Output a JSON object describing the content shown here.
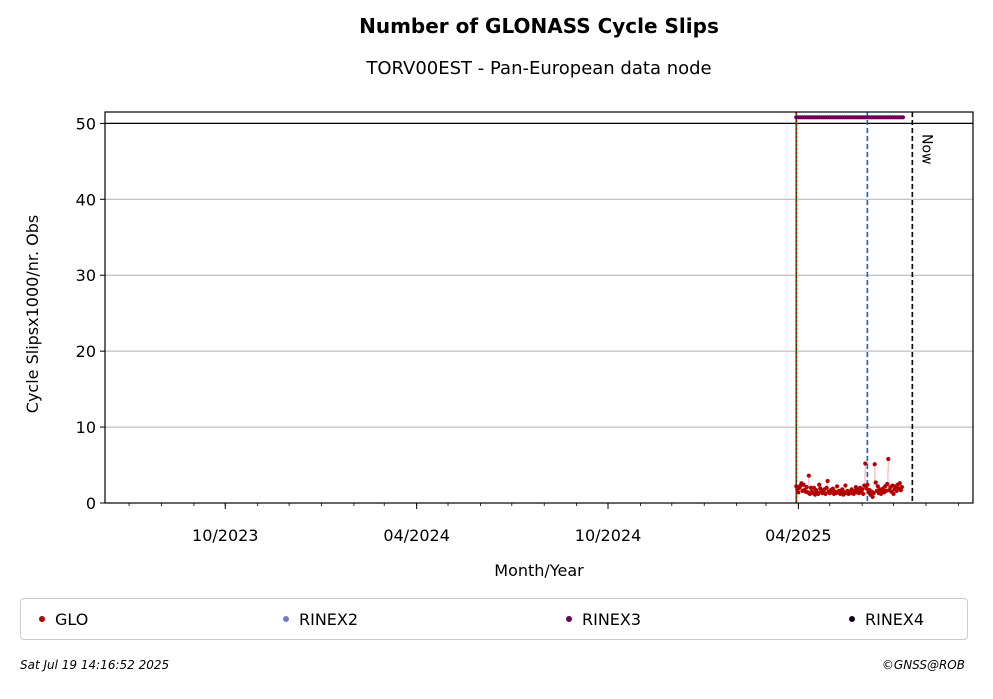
{
  "chart_data": {
    "type": "scatter",
    "title": "Number of GLONASS Cycle Slips",
    "subtitle": "TORV00EST - Pan-European data node",
    "xlabel": "Month/Year",
    "ylabel": "Cycle Slipsx1000/nr. Obs",
    "x_range": [
      "2023-06-08",
      "2025-09-15"
    ],
    "ylim": [
      0,
      51.5
    ],
    "y_ticks": [
      0,
      10,
      20,
      30,
      40,
      50
    ],
    "x_ticks": [
      {
        "date": "2023-10-01",
        "label": "10/2023"
      },
      {
        "date": "2024-04-01",
        "label": "04/2024"
      },
      {
        "date": "2024-10-01",
        "label": "10/2024"
      },
      {
        "date": "2025-04-01",
        "label": "04/2025"
      }
    ],
    "grid": "horizontal",
    "vertical_lines": [
      {
        "date": "2025-03-30",
        "color": "#008000",
        "style": "solid"
      },
      {
        "date": "2025-03-30",
        "color": "#cc0000",
        "style": "dotted"
      },
      {
        "date": "2025-06-06",
        "color": "#1f5fbf",
        "style": "dashed"
      },
      {
        "date": "2025-07-19",
        "color": "#000000",
        "style": "dashed",
        "label": "Now"
      }
    ],
    "reference_line": {
      "y": 50,
      "color": "#000000"
    },
    "series": [
      {
        "name": "GLO",
        "color": "#b40000",
        "points": [
          [
            "2025-03-30",
            2.2
          ],
          [
            "2025-03-31",
            1.8
          ],
          [
            "2025-04-01",
            1.4
          ],
          [
            "2025-04-02",
            2.0
          ],
          [
            "2025-04-03",
            2.3
          ],
          [
            "2025-04-04",
            2.6
          ],
          [
            "2025-04-05",
            1.6
          ],
          [
            "2025-04-06",
            2.4
          ],
          [
            "2025-04-07",
            1.7
          ],
          [
            "2025-04-08",
            1.5
          ],
          [
            "2025-04-09",
            2.1
          ],
          [
            "2025-04-10",
            1.4
          ],
          [
            "2025-04-11",
            3.6
          ],
          [
            "2025-04-12",
            1.2
          ],
          [
            "2025-04-13",
            2.0
          ],
          [
            "2025-04-14",
            1.5
          ],
          [
            "2025-04-15",
            1.3
          ],
          [
            "2025-04-16",
            2.0
          ],
          [
            "2025-04-17",
            1.1
          ],
          [
            "2025-04-18",
            1.7
          ],
          [
            "2025-04-19",
            1.4
          ],
          [
            "2025-04-20",
            1.2
          ],
          [
            "2025-04-21",
            2.4
          ],
          [
            "2025-04-22",
            1.9
          ],
          [
            "2025-04-23",
            1.5
          ],
          [
            "2025-04-24",
            1.3
          ],
          [
            "2025-04-25",
            1.6
          ],
          [
            "2025-04-26",
            1.8
          ],
          [
            "2025-04-27",
            1.2
          ],
          [
            "2025-04-28",
            2.0
          ],
          [
            "2025-04-29",
            2.9
          ],
          [
            "2025-04-30",
            1.5
          ],
          [
            "2025-05-01",
            1.3
          ],
          [
            "2025-05-02",
            1.7
          ],
          [
            "2025-05-03",
            1.4
          ],
          [
            "2025-05-04",
            1.9
          ],
          [
            "2025-05-05",
            1.2
          ],
          [
            "2025-05-06",
            1.5
          ],
          [
            "2025-05-07",
            1.3
          ],
          [
            "2025-05-08",
            2.2
          ],
          [
            "2025-05-09",
            1.4
          ],
          [
            "2025-05-10",
            1.6
          ],
          [
            "2025-05-11",
            1.2
          ],
          [
            "2025-05-12",
            1.5
          ],
          [
            "2025-05-13",
            1.8
          ],
          [
            "2025-05-14",
            1.1
          ],
          [
            "2025-05-15",
            1.4
          ],
          [
            "2025-05-16",
            2.3
          ],
          [
            "2025-05-17",
            1.3
          ],
          [
            "2025-05-18",
            1.6
          ],
          [
            "2025-05-19",
            1.2
          ],
          [
            "2025-05-20",
            1.5
          ],
          [
            "2025-05-21",
            1.3
          ],
          [
            "2025-05-22",
            1.8
          ],
          [
            "2025-05-23",
            1.4
          ],
          [
            "2025-05-24",
            1.2
          ],
          [
            "2025-05-25",
            1.6
          ],
          [
            "2025-05-26",
            2.1
          ],
          [
            "2025-05-27",
            1.4
          ],
          [
            "2025-05-28",
            1.7
          ],
          [
            "2025-05-29",
            1.3
          ],
          [
            "2025-05-30",
            2.0
          ],
          [
            "2025-05-31",
            1.5
          ],
          [
            "2025-06-01",
            1.8
          ],
          [
            "2025-06-02",
            1.2
          ],
          [
            "2025-06-03",
            2.3
          ],
          [
            "2025-06-04",
            5.2
          ],
          [
            "2025-06-05",
            1.9
          ],
          [
            "2025-06-06",
            2.4
          ],
          [
            "2025-06-07",
            1.4
          ],
          [
            "2025-06-08",
            1.7
          ],
          [
            "2025-06-09",
            1.1
          ],
          [
            "2025-06-10",
            1.5
          ],
          [
            "2025-06-11",
            0.8
          ],
          [
            "2025-06-12",
            1.3
          ],
          [
            "2025-06-13",
            5.1
          ],
          [
            "2025-06-14",
            2.7
          ],
          [
            "2025-06-15",
            1.6
          ],
          [
            "2025-06-16",
            2.2
          ],
          [
            "2025-06-17",
            1.3
          ],
          [
            "2025-06-18",
            1.8
          ],
          [
            "2025-06-19",
            1.2
          ],
          [
            "2025-06-20",
            1.5
          ],
          [
            "2025-06-21",
            1.9
          ],
          [
            "2025-06-22",
            1.4
          ],
          [
            "2025-06-23",
            2.2
          ],
          [
            "2025-06-24",
            1.6
          ],
          [
            "2025-06-25",
            2.5
          ],
          [
            "2025-06-26",
            5.8
          ],
          [
            "2025-06-27",
            1.7
          ],
          [
            "2025-06-28",
            2.1
          ],
          [
            "2025-06-29",
            1.5
          ],
          [
            "2025-06-30",
            2.3
          ],
          [
            "2025-07-01",
            1.2
          ],
          [
            "2025-07-02",
            1.8
          ],
          [
            "2025-07-03",
            2.2
          ],
          [
            "2025-07-04",
            1.6
          ],
          [
            "2025-07-05",
            2.4
          ],
          [
            "2025-07-06",
            1.9
          ],
          [
            "2025-07-07",
            2.6
          ],
          [
            "2025-07-08",
            1.7
          ],
          [
            "2025-07-09",
            2.1
          ]
        ]
      },
      {
        "name": "RINEX2",
        "color": "#7b7bbf",
        "points": []
      },
      {
        "name": "RINEX3",
        "color": "#6b0058",
        "constant_y": 50.8,
        "x_start": "2025-03-30",
        "x_end": "2025-07-11",
        "step_days": 2
      },
      {
        "name": "RINEX4",
        "color": "#1a0014",
        "points": []
      }
    ]
  },
  "footer": {
    "date": "Sat Jul 19 14:16:52 2025",
    "credit": "©GNSS@ROB"
  }
}
